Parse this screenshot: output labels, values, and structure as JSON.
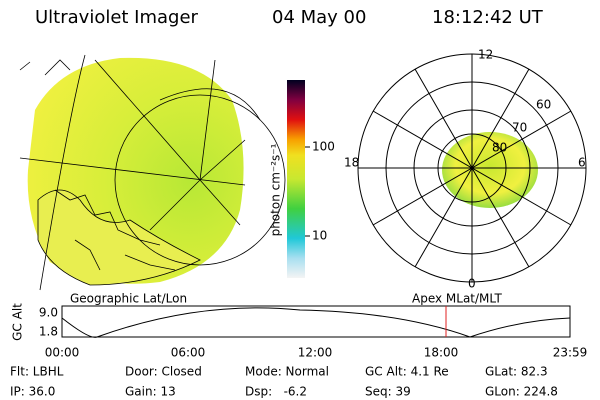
{
  "header": {
    "title": "Ultraviolet Imager",
    "date": "04 May 00",
    "time": "18:12:42 UT"
  },
  "colorbar": {
    "label": "photon cm⁻²s⁻¹",
    "ticks": [
      "100",
      "10"
    ]
  },
  "polar": {
    "labels": {
      "top": "12",
      "bottom": "0",
      "left": "18",
      "right": "6"
    },
    "latitudes": [
      "60",
      "70",
      "80"
    ]
  },
  "orbit": {
    "left_title": "Geographic Lat/Lon",
    "right_title": "Apex MLat/MLT",
    "y_label": "GC Alt",
    "yticks": [
      "9.0",
      "1.8"
    ],
    "xticks": [
      "00:00",
      "06:00",
      "12:00",
      "18:00",
      "23:59"
    ]
  },
  "info": {
    "rows": [
      [
        "Flt: LBHL",
        "Door: Closed",
        "Mode: Normal",
        "GC Alt: 4.1 Re",
        "GLat: 82.3"
      ],
      [
        "IP: 36.0",
        "Gain: 13",
        "Dsp:   -6.2",
        "Seq: 39",
        "GLon: 224.8"
      ]
    ]
  }
}
